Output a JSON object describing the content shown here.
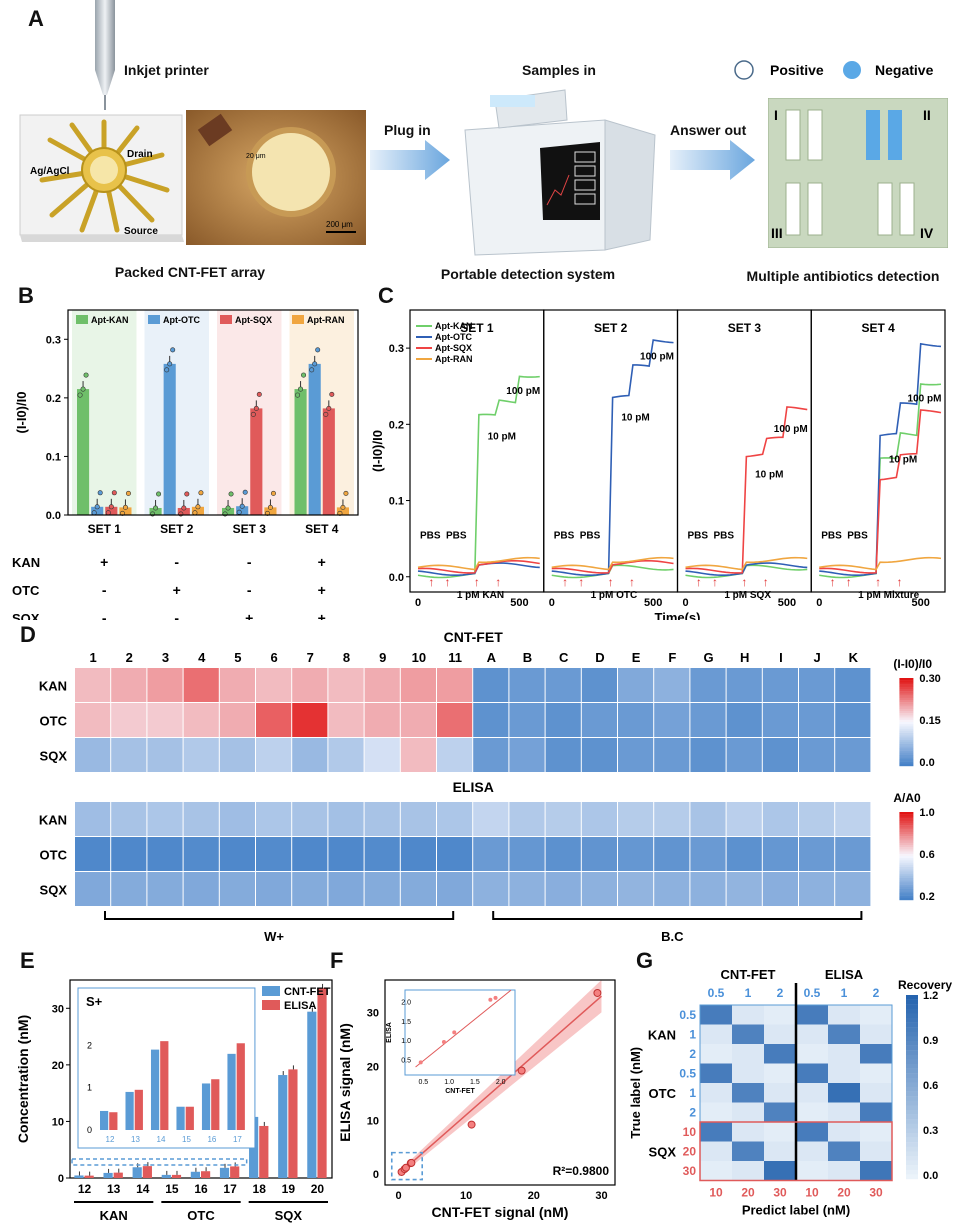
{
  "panelA": {
    "label": "A",
    "inkjet_label": "Inkjet printer",
    "samples_in": "Samples in",
    "plug_in": "Plug in",
    "answer_out": "Answer out",
    "positive": "Positive",
    "negative": "Negative",
    "chip_labels": {
      "drain": "Drain",
      "ref": "Ag/AgCl",
      "source": "Source",
      "scale1": "20 μm",
      "scale2": "200 μm"
    },
    "captions": [
      "Packed CNT-FET array",
      "Portable detection system",
      "Multiple antibiotics detection"
    ],
    "quadrants": [
      "I",
      "II",
      "III",
      "IV"
    ],
    "colors": {
      "positive": "#ffffff",
      "negative": "#5aa8e6",
      "arrow": "#7ab3e6",
      "board": "#c9d8bf"
    }
  },
  "panelB": {
    "label": "B",
    "chart_data": {
      "type": "bar",
      "ylabel": "(I-I0)/I0",
      "ylim": [
        0,
        0.35
      ],
      "yticks": [
        "0.0",
        "0.1",
        "0.2",
        "0.3"
      ],
      "categories": [
        "SET 1",
        "SET 2",
        "SET 3",
        "SET 4"
      ],
      "series": [
        {
          "name": "Apt-KAN",
          "color": "#6fbf6a",
          "values": [
            0.215,
            0.012,
            0.012,
            0.215
          ]
        },
        {
          "name": "Apt-OTC",
          "color": "#5a9bd5",
          "values": [
            0.014,
            0.258,
            0.015,
            0.258
          ]
        },
        {
          "name": "Apt-SQX",
          "color": "#e05a5a",
          "values": [
            0.014,
            0.012,
            0.182,
            0.182
          ]
        },
        {
          "name": "Apt-RAN",
          "color": "#f0a640",
          "values": [
            0.013,
            0.014,
            0.013,
            0.013
          ]
        }
      ],
      "shaded_colors": [
        "#d6ecd3",
        "#d7e6f4",
        "#f7d6d6",
        "#f9e3c5"
      ],
      "row_labels": [
        "KAN",
        "OTC",
        "SQX"
      ],
      "signs": [
        [
          "+",
          "-",
          "-",
          "+"
        ],
        [
          "-",
          "+",
          "-",
          "+"
        ],
        [
          "-",
          "-",
          "+",
          "+"
        ]
      ]
    }
  },
  "panelC": {
    "label": "C",
    "chart_data": {
      "type": "line",
      "ylabel": "(I-I0)/I0",
      "xlabel": "Time(s)",
      "ylim": [
        -0.02,
        0.35
      ],
      "yticks": [
        "0.0",
        "0.1",
        "0.2",
        "0.3"
      ],
      "xticks": [
        "0",
        "500"
      ],
      "legend": [
        "Apt-KAN",
        "Apt-OTC",
        "Apt-SQX",
        "Apt-RAN"
      ],
      "colors": [
        "#6fcf6a",
        "#2f5fb5",
        "#ef4444",
        "#f0a640"
      ],
      "sets": [
        {
          "title": "SET 1",
          "target": 0,
          "label": "1 pM KAN",
          "levels": [
            0.0,
            0.21,
            0.23,
            0.265
          ]
        },
        {
          "title": "SET 2",
          "target": 1,
          "label": "1 pM OTC",
          "levels": [
            0.005,
            0.235,
            0.275,
            0.31
          ]
        },
        {
          "title": "SET 3",
          "target": 2,
          "label": "1 pM SQX",
          "levels": [
            0.0,
            0.16,
            0.18,
            0.22
          ]
        },
        {
          "title": "SET 4",
          "target": 4,
          "label": "1 pM Mixture",
          "levels": [
            0.0,
            0.18,
            0.22,
            0.3
          ]
        }
      ],
      "annotations": {
        "pbs": "PBS",
        "c10": "10 pM",
        "c100": "100 pM"
      }
    }
  },
  "panelD": {
    "label": "D",
    "title_top": "CNT-FET",
    "title_bottom": "ELISA",
    "columns": [
      "1",
      "2",
      "3",
      "4",
      "5",
      "6",
      "7",
      "8",
      "9",
      "10",
      "11",
      "A",
      "B",
      "C",
      "D",
      "E",
      "F",
      "G",
      "H",
      "I",
      "J",
      "K"
    ],
    "rows": [
      "KAN",
      "OTC",
      "SQX"
    ],
    "cbar_top": {
      "label": "(I-I0)/I0",
      "ticks": [
        "0.30",
        "0.15",
        "0.0"
      ]
    },
    "cbar_bottom": {
      "label": "A/A0",
      "ticks": [
        "1.0",
        "0.6",
        "0.2"
      ]
    },
    "bracket_left": "W+",
    "bracket_right": "B.C",
    "chart_data": {
      "type": "heatmap",
      "cntfet": [
        [
          0.19,
          0.2,
          0.21,
          0.24,
          0.2,
          0.19,
          0.2,
          0.19,
          0.2,
          0.21,
          0.21,
          0.02,
          0.03,
          0.03,
          0.02,
          0.05,
          0.06,
          0.03,
          0.03,
          0.03,
          0.03,
          0.02
        ],
        [
          0.19,
          0.18,
          0.18,
          0.19,
          0.2,
          0.25,
          0.28,
          0.19,
          0.2,
          0.2,
          0.24,
          0.02,
          0.03,
          0.02,
          0.03,
          0.03,
          0.04,
          0.03,
          0.02,
          0.03,
          0.03,
          0.02
        ],
        [
          0.07,
          0.08,
          0.08,
          0.09,
          0.08,
          0.1,
          0.07,
          0.09,
          0.12,
          0.19,
          0.1,
          0.03,
          0.04,
          0.02,
          0.02,
          0.03,
          0.03,
          0.02,
          0.03,
          0.02,
          0.03,
          0.03
        ]
      ],
      "elisa": [
        [
          0.4,
          0.42,
          0.43,
          0.42,
          0.4,
          0.43,
          0.42,
          0.41,
          0.42,
          0.42,
          0.43,
          0.48,
          0.44,
          0.45,
          0.43,
          0.45,
          0.45,
          0.42,
          0.46,
          0.43,
          0.45,
          0.47
        ],
        [
          0.22,
          0.22,
          0.22,
          0.23,
          0.22,
          0.23,
          0.22,
          0.22,
          0.23,
          0.22,
          0.22,
          0.28,
          0.27,
          0.25,
          0.26,
          0.27,
          0.26,
          0.28,
          0.25,
          0.27,
          0.28,
          0.28
        ],
        [
          0.33,
          0.34,
          0.34,
          0.33,
          0.34,
          0.33,
          0.34,
          0.33,
          0.34,
          0.34,
          0.33,
          0.36,
          0.36,
          0.35,
          0.36,
          0.37,
          0.36,
          0.36,
          0.37,
          0.35,
          0.36,
          0.36
        ]
      ]
    }
  },
  "panelE": {
    "label": "E",
    "chart_data": {
      "type": "bar",
      "ylabel": "Concentration (nM)",
      "ylim": [
        0,
        35
      ],
      "yticks": [
        "0",
        "10",
        "20",
        "30"
      ],
      "categories": [
        "12",
        "13",
        "14",
        "15",
        "16",
        "17",
        "18",
        "19",
        "20"
      ],
      "groups": [
        "KAN",
        "OTC",
        "SQX"
      ],
      "series": [
        {
          "name": "CNT-FET",
          "color": "#5a9bd5",
          "values": [
            0.45,
            0.9,
            1.9,
            0.55,
            1.1,
            1.8,
            10.8,
            18.2,
            29.4
          ]
        },
        {
          "name": "ELISA",
          "color": "#e05a5a",
          "values": [
            0.42,
            0.95,
            2.1,
            0.55,
            1.2,
            2.05,
            9.2,
            19.2,
            33.6
          ]
        }
      ],
      "inset_label": "S+",
      "inset_yticks": [
        "0",
        "1",
        "2"
      ]
    }
  },
  "panelF": {
    "label": "F",
    "chart_data": {
      "type": "scatter",
      "xlabel": "CNT-FET signal (nM)",
      "ylabel": "ELISA signal (nM)",
      "xlim": [
        -2,
        32
      ],
      "ylim": [
        -2,
        36
      ],
      "xticks": [
        "0",
        "10",
        "20",
        "30"
      ],
      "yticks": [
        "0",
        "10",
        "20",
        "30"
      ],
      "x": [
        0.45,
        0.9,
        1.1,
        1.8,
        1.9,
        10.8,
        18.2,
        29.4
      ],
      "y": [
        0.42,
        0.95,
        1.2,
        2.05,
        2.1,
        9.2,
        19.2,
        33.6
      ],
      "r2": "R²=0.9800",
      "inset": {
        "xlabel": "CNT-FET",
        "ylabel": "ELISA",
        "xticks": [
          "0.5",
          "1.0",
          "1.5",
          "2.0"
        ],
        "yticks": [
          "0.5",
          "1.0",
          "1.5",
          "2.0"
        ]
      }
    }
  },
  "panelG": {
    "label": "G",
    "title_left": "CNT-FET",
    "title_right": "ELISA",
    "top_ticks": [
      "0.5",
      "1",
      "2",
      "0.5",
      "1",
      "2"
    ],
    "bottom_ticks": [
      "10",
      "20",
      "30",
      "10",
      "20",
      "30"
    ],
    "row_ticks": [
      "0.5",
      "1",
      "2",
      "0.5",
      "1",
      "2",
      "10",
      "20",
      "30"
    ],
    "row_groups": [
      "KAN",
      "OTC",
      "SQX"
    ],
    "ylabel": "True label (nM)",
    "xlabel": "Predict label (nM)",
    "cbar": {
      "label": "Recovery",
      "ticks": [
        "1.2",
        "0.9",
        "0.6",
        "0.3",
        "0.0"
      ]
    },
    "colors": {
      "blue_tick": "#4a90d9",
      "red_tick": "#e05a5a"
    },
    "chart_data": {
      "type": "heatmap",
      "matrix": [
        [
          1.0,
          0.1,
          0.05,
          1.0,
          0.1,
          0.05
        ],
        [
          0.1,
          0.95,
          0.1,
          0.1,
          0.95,
          0.1
        ],
        [
          0.05,
          0.1,
          1.0,
          0.05,
          0.1,
          1.0
        ],
        [
          1.0,
          0.1,
          0.05,
          1.0,
          0.1,
          0.05
        ],
        [
          0.1,
          0.95,
          0.1,
          0.1,
          1.1,
          0.1
        ],
        [
          0.05,
          0.1,
          0.95,
          0.05,
          0.1,
          1.0
        ],
        [
          1.0,
          0.1,
          0.05,
          1.0,
          0.1,
          0.05
        ],
        [
          0.1,
          0.95,
          0.1,
          0.1,
          0.95,
          0.1
        ],
        [
          0.05,
          0.1,
          1.1,
          0.05,
          0.1,
          1.05
        ]
      ]
    }
  }
}
